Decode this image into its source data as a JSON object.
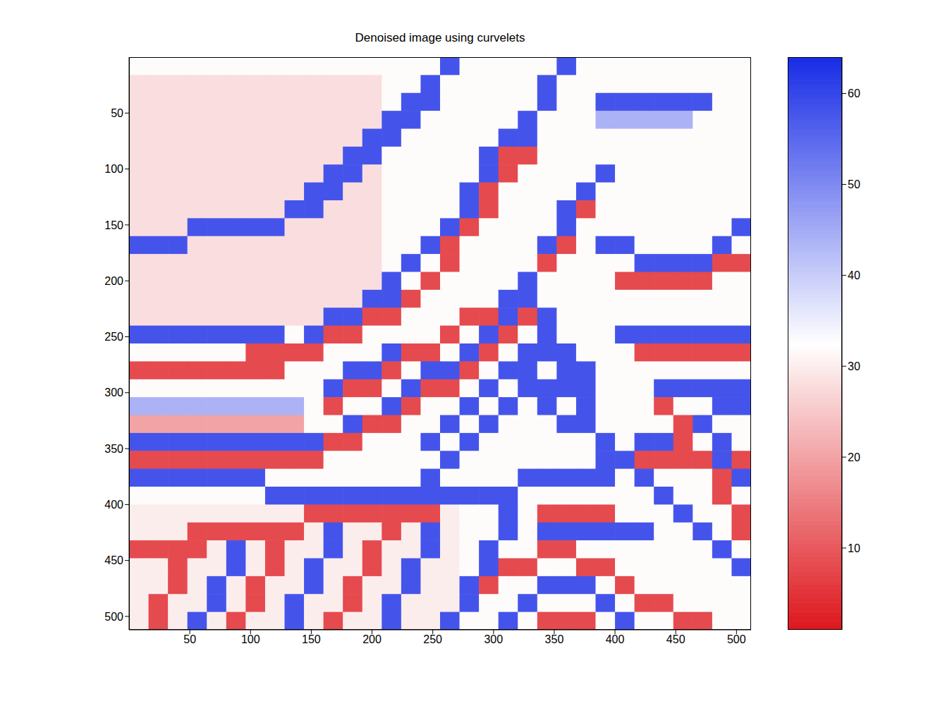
{
  "chart_data": {
    "type": "heatmap",
    "title": "Denoised image using curvelets",
    "xlim": [
      0,
      512
    ],
    "ylim": [
      0,
      512
    ],
    "xticks": [
      50,
      100,
      150,
      200,
      250,
      300,
      350,
      400,
      450,
      500
    ],
    "yticks": [
      50,
      100,
      150,
      200,
      250,
      300,
      350,
      400,
      450,
      500
    ],
    "colorbar": {
      "range": [
        1,
        64
      ],
      "ticks": [
        10,
        20,
        30,
        40,
        50,
        60
      ]
    },
    "cells": [
      [
        32,
        32,
        32,
        32,
        32,
        32,
        32,
        32,
        32,
        32,
        32,
        32,
        32,
        32,
        32,
        32,
        58,
        32,
        32,
        32,
        32,
        32,
        58,
        32,
        32,
        32,
        32,
        32,
        32,
        32,
        32,
        32
      ],
      [
        28,
        28,
        28,
        28,
        28,
        28,
        28,
        28,
        28,
        28,
        28,
        28,
        28,
        32,
        32,
        58,
        32,
        32,
        32,
        32,
        32,
        58,
        32,
        32,
        32,
        32,
        32,
        32,
        32,
        32,
        32,
        32
      ],
      [
        28,
        28,
        28,
        28,
        28,
        28,
        28,
        28,
        28,
        28,
        28,
        28,
        28,
        32,
        58,
        58,
        32,
        32,
        32,
        32,
        32,
        58,
        32,
        32,
        58,
        58,
        58,
        58,
        58,
        58,
        32,
        32
      ],
      [
        28,
        28,
        28,
        28,
        28,
        28,
        28,
        28,
        28,
        28,
        28,
        28,
        28,
        58,
        58,
        32,
        32,
        32,
        32,
        32,
        58,
        32,
        32,
        32,
        44,
        44,
        44,
        44,
        44,
        32,
        32,
        32
      ],
      [
        28,
        28,
        28,
        28,
        28,
        28,
        28,
        28,
        28,
        28,
        28,
        28,
        58,
        58,
        32,
        32,
        32,
        32,
        32,
        58,
        58,
        32,
        32,
        32,
        32,
        32,
        32,
        32,
        32,
        32,
        32,
        32
      ],
      [
        28,
        28,
        28,
        28,
        28,
        28,
        28,
        28,
        28,
        28,
        28,
        58,
        58,
        32,
        32,
        32,
        32,
        32,
        58,
        8,
        8,
        32,
        32,
        32,
        32,
        32,
        32,
        32,
        32,
        32,
        32,
        32
      ],
      [
        28,
        28,
        28,
        28,
        28,
        28,
        28,
        28,
        28,
        28,
        58,
        58,
        28,
        32,
        32,
        32,
        32,
        32,
        58,
        8,
        32,
        32,
        32,
        32,
        58,
        32,
        32,
        32,
        32,
        32,
        32,
        32
      ],
      [
        28,
        28,
        28,
        28,
        28,
        28,
        28,
        28,
        28,
        58,
        58,
        28,
        28,
        32,
        32,
        32,
        32,
        58,
        8,
        32,
        32,
        32,
        32,
        58,
        32,
        32,
        32,
        32,
        32,
        32,
        32,
        32
      ],
      [
        28,
        28,
        28,
        28,
        28,
        28,
        28,
        28,
        58,
        58,
        28,
        28,
        28,
        32,
        32,
        32,
        32,
        58,
        8,
        32,
        32,
        32,
        58,
        8,
        32,
        32,
        32,
        32,
        32,
        32,
        32,
        32
      ],
      [
        28,
        28,
        28,
        58,
        58,
        58,
        58,
        58,
        28,
        28,
        28,
        28,
        28,
        32,
        32,
        32,
        58,
        8,
        32,
        32,
        32,
        32,
        58,
        32,
        32,
        32,
        32,
        32,
        32,
        32,
        32,
        58
      ],
      [
        58,
        58,
        58,
        28,
        28,
        28,
        28,
        28,
        28,
        28,
        28,
        28,
        28,
        32,
        32,
        58,
        8,
        32,
        32,
        32,
        32,
        58,
        8,
        32,
        58,
        58,
        32,
        32,
        32,
        32,
        58,
        32
      ],
      [
        28,
        28,
        28,
        28,
        28,
        28,
        28,
        28,
        28,
        28,
        28,
        28,
        28,
        32,
        58,
        32,
        8,
        32,
        32,
        32,
        32,
        8,
        32,
        32,
        32,
        32,
        58,
        58,
        58,
        58,
        8,
        8
      ],
      [
        28,
        28,
        28,
        28,
        28,
        28,
        28,
        28,
        28,
        28,
        28,
        28,
        28,
        58,
        32,
        8,
        32,
        32,
        32,
        32,
        58,
        32,
        32,
        32,
        32,
        8,
        8,
        8,
        8,
        8,
        32,
        32
      ],
      [
        28,
        28,
        28,
        28,
        28,
        28,
        28,
        28,
        28,
        28,
        28,
        28,
        58,
        58,
        8,
        32,
        32,
        32,
        32,
        58,
        58,
        32,
        32,
        32,
        32,
        32,
        32,
        32,
        32,
        32,
        32,
        32
      ],
      [
        28,
        28,
        28,
        28,
        28,
        28,
        28,
        28,
        28,
        28,
        58,
        58,
        8,
        8,
        32,
        32,
        32,
        8,
        8,
        58,
        8,
        58,
        32,
        32,
        32,
        32,
        32,
        32,
        32,
        32,
        32,
        32
      ],
      [
        58,
        58,
        58,
        58,
        58,
        58,
        58,
        58,
        32,
        58,
        8,
        8,
        32,
        32,
        32,
        32,
        8,
        32,
        58,
        8,
        32,
        58,
        32,
        32,
        32,
        58,
        58,
        58,
        58,
        58,
        58,
        58
      ],
      [
        32,
        32,
        32,
        32,
        32,
        32,
        8,
        8,
        8,
        8,
        32,
        32,
        32,
        58,
        8,
        8,
        32,
        58,
        8,
        32,
        58,
        58,
        58,
        32,
        32,
        32,
        8,
        8,
        8,
        8,
        8,
        8
      ],
      [
        8,
        8,
        8,
        8,
        8,
        8,
        8,
        8,
        32,
        32,
        32,
        58,
        58,
        8,
        32,
        58,
        58,
        8,
        32,
        58,
        58,
        32,
        58,
        58,
        32,
        32,
        32,
        32,
        32,
        32,
        32,
        32
      ],
      [
        32,
        32,
        32,
        32,
        32,
        32,
        32,
        32,
        32,
        32,
        58,
        8,
        8,
        32,
        58,
        8,
        8,
        32,
        58,
        32,
        58,
        58,
        58,
        58,
        32,
        32,
        32,
        58,
        58,
        58,
        58,
        58
      ],
      [
        44,
        44,
        44,
        44,
        44,
        44,
        44,
        44,
        44,
        32,
        8,
        32,
        32,
        58,
        8,
        32,
        32,
        58,
        32,
        58,
        32,
        58,
        32,
        58,
        32,
        32,
        32,
        8,
        32,
        32,
        58,
        58
      ],
      [
        20,
        20,
        20,
        20,
        20,
        20,
        20,
        20,
        20,
        32,
        32,
        58,
        8,
        8,
        32,
        32,
        58,
        32,
        58,
        32,
        32,
        32,
        58,
        58,
        32,
        32,
        32,
        32,
        8,
        58,
        32,
        32
      ],
      [
        58,
        58,
        58,
        58,
        58,
        58,
        58,
        58,
        58,
        58,
        8,
        8,
        32,
        32,
        32,
        58,
        32,
        58,
        32,
        32,
        32,
        32,
        32,
        32,
        58,
        32,
        58,
        58,
        8,
        32,
        58,
        32
      ],
      [
        8,
        8,
        8,
        8,
        8,
        8,
        8,
        8,
        8,
        8,
        32,
        32,
        32,
        32,
        32,
        32,
        58,
        32,
        32,
        32,
        32,
        32,
        32,
        32,
        58,
        58,
        8,
        8,
        8,
        8,
        58,
        8
      ],
      [
        58,
        58,
        58,
        58,
        58,
        58,
        58,
        32,
        32,
        32,
        32,
        32,
        32,
        32,
        32,
        58,
        32,
        32,
        32,
        32,
        58,
        58,
        58,
        58,
        58,
        32,
        58,
        32,
        32,
        32,
        8,
        58
      ],
      [
        32,
        32,
        32,
        32,
        32,
        32,
        32,
        58,
        58,
        58,
        58,
        58,
        58,
        58,
        58,
        58,
        58,
        58,
        58,
        58,
        32,
        32,
        32,
        32,
        32,
        32,
        32,
        58,
        32,
        32,
        8,
        32
      ],
      [
        30,
        30,
        30,
        30,
        30,
        30,
        30,
        30,
        30,
        8,
        8,
        8,
        8,
        8,
        8,
        8,
        30,
        32,
        32,
        58,
        32,
        8,
        8,
        8,
        8,
        32,
        32,
        32,
        58,
        32,
        32,
        8
      ],
      [
        30,
        30,
        30,
        8,
        8,
        8,
        8,
        8,
        8,
        30,
        58,
        30,
        30,
        8,
        30,
        58,
        30,
        32,
        32,
        58,
        32,
        58,
        58,
        58,
        58,
        58,
        58,
        32,
        32,
        58,
        32,
        8
      ],
      [
        8,
        8,
        8,
        8,
        30,
        58,
        30,
        8,
        30,
        30,
        58,
        30,
        8,
        30,
        30,
        58,
        30,
        32,
        58,
        32,
        32,
        8,
        8,
        32,
        32,
        32,
        32,
        32,
        32,
        32,
        58,
        32
      ],
      [
        30,
        30,
        8,
        30,
        30,
        58,
        30,
        8,
        30,
        58,
        30,
        30,
        8,
        30,
        58,
        30,
        30,
        32,
        58,
        8,
        8,
        32,
        32,
        8,
        8,
        32,
        32,
        32,
        32,
        32,
        32,
        58
      ],
      [
        30,
        30,
        8,
        30,
        58,
        30,
        8,
        30,
        30,
        58,
        30,
        8,
        30,
        30,
        58,
        30,
        30,
        58,
        8,
        32,
        32,
        58,
        58,
        58,
        32,
        8,
        32,
        32,
        32,
        32,
        32,
        32
      ],
      [
        30,
        8,
        30,
        30,
        58,
        30,
        8,
        30,
        58,
        30,
        30,
        8,
        30,
        58,
        30,
        30,
        30,
        58,
        32,
        32,
        58,
        32,
        32,
        32,
        58,
        32,
        8,
        8,
        32,
        32,
        32,
        32
      ],
      [
        30,
        8,
        30,
        58,
        30,
        8,
        30,
        30,
        58,
        30,
        8,
        30,
        30,
        58,
        30,
        30,
        58,
        32,
        32,
        58,
        32,
        8,
        8,
        8,
        32,
        58,
        32,
        32,
        8,
        8,
        32,
        32
      ]
    ]
  }
}
